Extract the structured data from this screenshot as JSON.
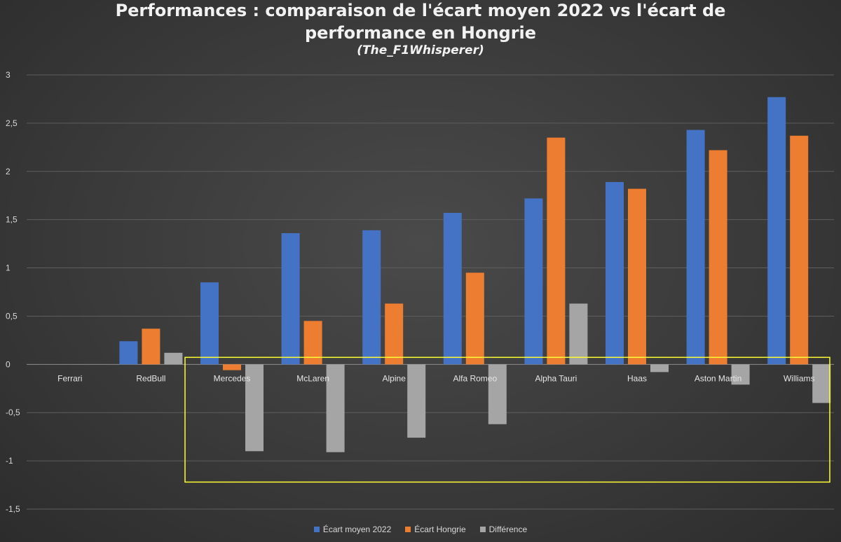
{
  "title_line1": "Performances : comparaison de l'écart moyen 2022 vs l'écart de",
  "title_line2": "performance en Hongrie",
  "subtitle": "(The_F1Whisperer)",
  "chart_data": {
    "type": "bar",
    "categories": [
      "Ferrari",
      "RedBull",
      "Mercedes",
      "McLaren",
      "Alpine",
      "Alfa Romeo",
      "Alpha Tauri",
      "Haas",
      "Aston Martin",
      "Williams"
    ],
    "series": [
      {
        "name": "Écart moyen 2022",
        "color": "#4472c4",
        "values": [
          0,
          0.24,
          0.85,
          1.36,
          1.39,
          1.57,
          1.72,
          1.89,
          2.43,
          2.77
        ]
      },
      {
        "name": "Écart Hongrie",
        "color": "#ed7d31",
        "values": [
          0,
          0.37,
          -0.06,
          0.45,
          0.63,
          0.95,
          2.35,
          1.82,
          2.22,
          2.37
        ]
      },
      {
        "name": "Différence",
        "color": "#a5a5a5",
        "values": [
          0,
          0.12,
          -0.9,
          -0.91,
          -0.76,
          -0.62,
          0.63,
          -0.08,
          -0.21,
          -0.4
        ]
      }
    ],
    "y_ticks": [
      "3",
      "2,5",
      "2",
      "1,5",
      "1",
      "0,5",
      "0",
      "-0,5",
      "-1",
      "-1,5"
    ],
    "ylim": [
      -1.5,
      3
    ],
    "grid": true,
    "legend_position": "bottom",
    "highlight_box_color": "#ffff33"
  }
}
